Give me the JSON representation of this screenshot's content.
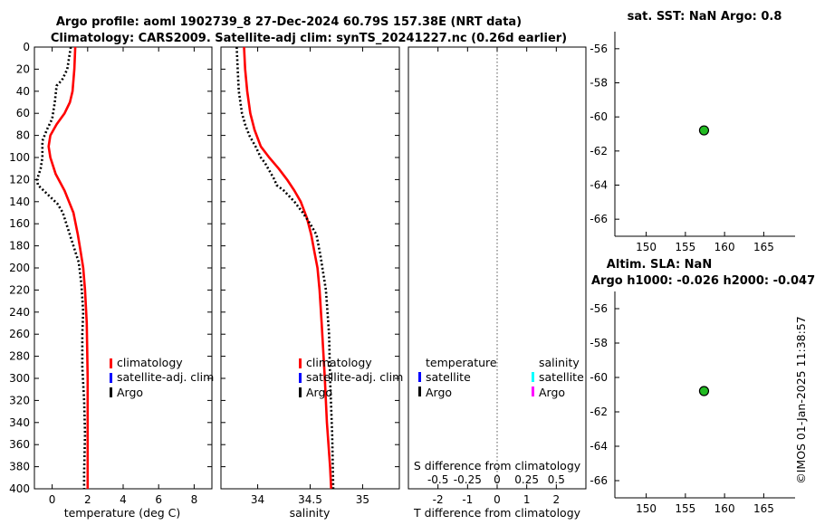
{
  "header": {
    "title_line1": "Argo profile: aoml 1902739_8 27-Dec-2024 60.79S 157.38E (NRT data)",
    "title_line2": "Climatology: CARS2009. Satellite-adj clim: synTS_20241227.nc (0.26d earlier)"
  },
  "stamp": "©IMOS 01-Jan-2025 11:38:57",
  "colors": {
    "climatology": "#ff0000",
    "satellite_clim": "#0000ff",
    "argo": "#000000",
    "t_satellite": "#0000ff",
    "s_satellite": "#00ffff",
    "s_argo": "#ff00ff",
    "marker": "#22bb22"
  },
  "legend_labels": {
    "climatology": "climatology",
    "satellite": "satellite-adj. clim",
    "argo": "Argo"
  },
  "diff_legend": {
    "temperature": "temperature",
    "salinity": "salinity",
    "satellite": "satellite",
    "argo": "Argo"
  },
  "chart_data": [
    {
      "id": "temperature",
      "type": "line",
      "xlabel": "temperature (deg C)",
      "ylabel": "",
      "xlim": [
        -1,
        9
      ],
      "ylim": [
        0,
        400
      ],
      "y_reversed": true,
      "xticks": [
        0,
        2,
        4,
        6,
        8
      ],
      "yticks": [
        0,
        20,
        40,
        60,
        80,
        100,
        120,
        140,
        160,
        180,
        200,
        220,
        240,
        260,
        280,
        300,
        320,
        340,
        360,
        380,
        400
      ],
      "series": [
        {
          "name": "climatology",
          "style": "solid",
          "x": [
            1.3,
            1.25,
            1.15,
            1.0,
            0.7,
            0.25,
            -0.1,
            -0.2,
            -0.1,
            0.2,
            0.7,
            1.2,
            1.45,
            1.6,
            1.75,
            1.85,
            1.95,
            2.0,
            2.0,
            2.0,
            2.0
          ],
          "y": [
            0,
            20,
            40,
            50,
            60,
            70,
            80,
            90,
            100,
            115,
            130,
            150,
            170,
            185,
            200,
            220,
            250,
            300,
            350,
            380,
            400
          ]
        },
        {
          "name": "Argo",
          "style": "dotted",
          "x": [
            1.05,
            0.95,
            0.85,
            0.55,
            0.25,
            0.15,
            0.0,
            -0.3,
            -0.55,
            -0.55,
            -0.65,
            -0.75,
            -0.85,
            -0.8,
            0.3,
            0.6,
            0.9,
            1.2,
            1.5,
            1.65,
            1.75,
            1.7,
            1.7,
            1.8,
            1.85,
            1.8,
            1.8
          ],
          "y": [
            0,
            10,
            20,
            30,
            35,
            50,
            65,
            75,
            85,
            100,
            110,
            115,
            120,
            125,
            142,
            150,
            165,
            180,
            195,
            215,
            240,
            260,
            290,
            320,
            350,
            385,
            400
          ]
        }
      ]
    },
    {
      "id": "salinity",
      "type": "line",
      "xlabel": "salinity",
      "ylabel": "",
      "xlim": [
        33.65,
        35.35
      ],
      "ylim": [
        0,
        400
      ],
      "y_reversed": true,
      "xticks": [
        34,
        34.5,
        35
      ],
      "yticks": [
        0,
        20,
        40,
        60,
        80,
        100,
        120,
        140,
        160,
        180,
        200,
        220,
        240,
        260,
        280,
        300,
        320,
        340,
        360,
        380,
        400
      ],
      "series": [
        {
          "name": "climatology",
          "style": "solid",
          "x": [
            33.87,
            33.88,
            33.9,
            33.93,
            33.97,
            34.03,
            34.11,
            34.2,
            34.28,
            34.35,
            34.41,
            34.47,
            34.51,
            34.54,
            34.57,
            34.59,
            34.61,
            34.64,
            34.66,
            34.69,
            34.7
          ],
          "y": [
            0,
            20,
            40,
            60,
            75,
            90,
            100,
            110,
            120,
            130,
            140,
            155,
            170,
            185,
            200,
            220,
            250,
            300,
            340,
            380,
            400
          ]
        },
        {
          "name": "Argo",
          "style": "dotted",
          "x": [
            33.8,
            33.81,
            33.82,
            33.85,
            33.88,
            33.92,
            33.98,
            34.03,
            34.07,
            34.1,
            34.13,
            34.16,
            34.18,
            34.25,
            34.3,
            34.35,
            34.43,
            34.5,
            34.56,
            34.6,
            34.65,
            34.68,
            34.69,
            34.71,
            34.72
          ],
          "y": [
            0,
            20,
            40,
            60,
            70,
            80,
            90,
            100,
            105,
            110,
            115,
            120,
            125,
            130,
            135,
            140,
            150,
            160,
            170,
            190,
            220,
            260,
            300,
            350,
            400
          ]
        }
      ]
    },
    {
      "id": "difference",
      "type": "line",
      "xlabel": "T difference from climatology",
      "xlabel_top": "S difference from climatology",
      "ylabel": "",
      "xlim": [
        -3,
        3
      ],
      "ylim": [
        0,
        400
      ],
      "y_reversed": true,
      "xticks": [
        -2,
        -1,
        0,
        1,
        2
      ],
      "s_ticks": [
        "-0.5",
        "-0.25",
        "0",
        "0.25",
        "0.5"
      ],
      "series": [
        {
          "name": "zero line",
          "style": "dotted",
          "x": [
            0,
            0
          ],
          "y": [
            0,
            400
          ]
        }
      ]
    },
    {
      "id": "sst_map",
      "type": "scatter",
      "title": "sat. SST: NaN Argo: 0.8",
      "xlim": [
        146,
        169
      ],
      "ylim": [
        -67,
        -55
      ],
      "xticks": [
        150,
        155,
        160,
        165
      ],
      "yticks": [
        -56,
        -58,
        -60,
        -62,
        -64,
        -66
      ],
      "points": [
        {
          "x": 157.38,
          "y": -60.79
        }
      ]
    },
    {
      "id": "sla_map",
      "type": "scatter",
      "title_line1": "Altim. SLA: NaN",
      "title_line2": "Argo h1000: -0.026 h2000: -0.047",
      "xlim": [
        146,
        169
      ],
      "ylim": [
        -67,
        -55
      ],
      "xticks": [
        150,
        155,
        160,
        165
      ],
      "yticks": [
        -56,
        -58,
        -60,
        -62,
        -64,
        -66
      ],
      "points": [
        {
          "x": 157.38,
          "y": -60.79
        }
      ]
    }
  ]
}
